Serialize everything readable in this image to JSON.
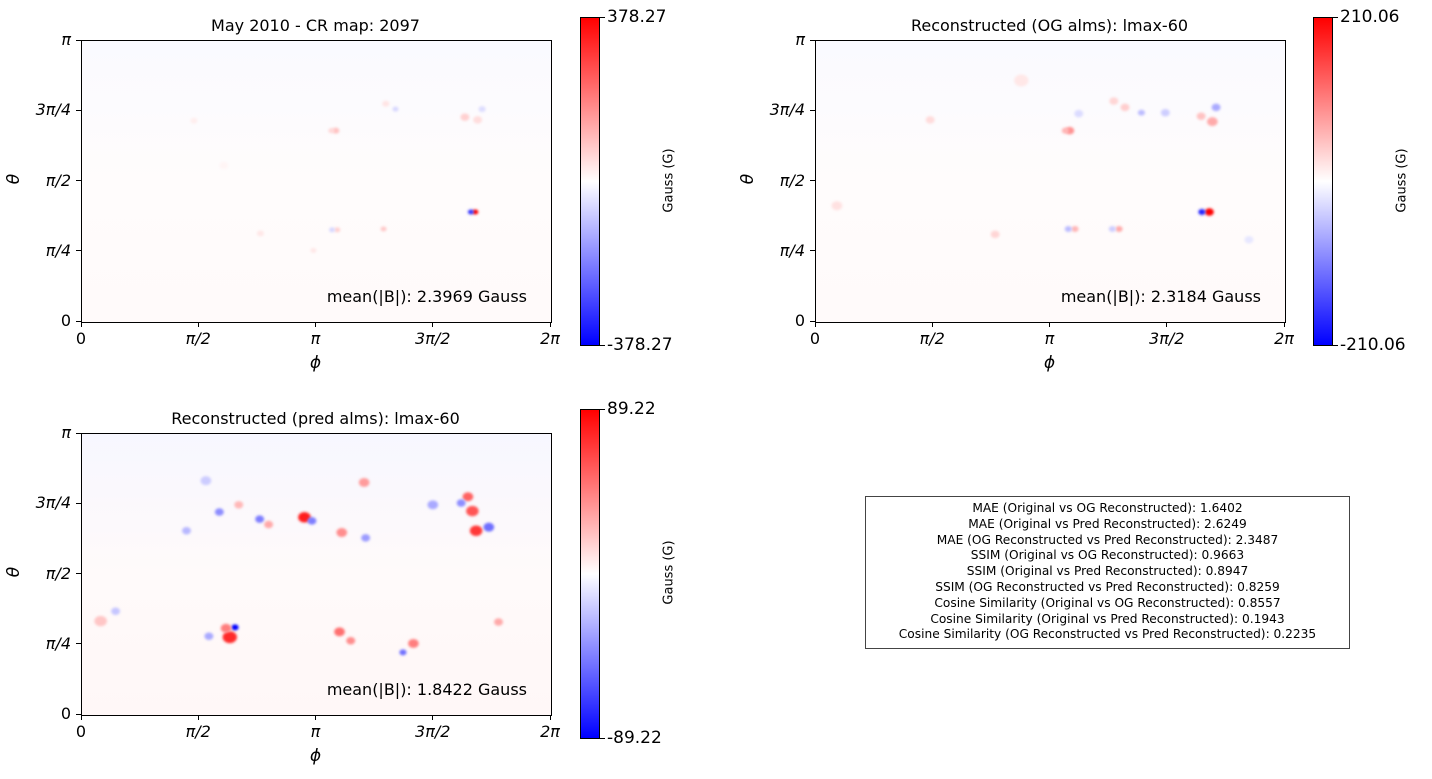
{
  "colors": {
    "positive": "#ff0000",
    "negative": "#0000ff",
    "neutral": "#ffffff",
    "frame": "#000000"
  },
  "x_ticks": [
    "0",
    "π/2",
    "π",
    "3π/2",
    "2π"
  ],
  "y_ticks": [
    "0",
    "π/4",
    "π/2",
    "3π/4",
    "π"
  ],
  "xlabel": "ϕ",
  "ylabel": "θ",
  "colorbar_label": "Gauss (G)",
  "chart_data": [
    {
      "type": "heatmap",
      "title": "May 2010 - CR map: 2097",
      "xlabel": "ϕ",
      "ylabel": "θ",
      "x_ticks": [
        "0",
        "π/2",
        "π",
        "3π/2",
        "2π"
      ],
      "y_ticks": [
        "0",
        "π/4",
        "π/2",
        "3π/4",
        "π"
      ],
      "xlim": [
        0,
        6.2832
      ],
      "ylim": [
        0,
        3.1416
      ],
      "vmin": -378.27,
      "vmax": 378.27,
      "colorbar_max_label": "378.27",
      "colorbar_min_label": "-378.27",
      "colorbar_label": "Gauss (G)",
      "annotation": "mean(|B|): 2.3969 Gauss",
      "colormap": "bwr",
      "background_tint": 0.02,
      "features": [
        {
          "phi": 5.27,
          "theta": 1.23,
          "value": 378.27,
          "spread": 0.03
        },
        {
          "phi": 5.21,
          "theta": 1.23,
          "value": -300,
          "spread": 0.03
        },
        {
          "phi": 3.4,
          "theta": 2.14,
          "value": 90,
          "spread": 0.04
        },
        {
          "phi": 3.34,
          "theta": 2.14,
          "value": 60,
          "spread": 0.03
        },
        {
          "phi": 3.42,
          "theta": 1.03,
          "value": 70,
          "spread": 0.03
        },
        {
          "phi": 3.35,
          "theta": 1.03,
          "value": -60,
          "spread": 0.03
        },
        {
          "phi": 4.04,
          "theta": 1.04,
          "value": 80,
          "spread": 0.03
        },
        {
          "phi": 5.13,
          "theta": 2.29,
          "value": 70,
          "spread": 0.05
        },
        {
          "phi": 5.3,
          "theta": 2.26,
          "value": 50,
          "spread": 0.05
        },
        {
          "phi": 5.36,
          "theta": 2.38,
          "value": -50,
          "spread": 0.04
        },
        {
          "phi": 4.07,
          "theta": 2.44,
          "value": 40,
          "spread": 0.04
        },
        {
          "phi": 4.2,
          "theta": 2.38,
          "value": -60,
          "spread": 0.03
        },
        {
          "phi": 3.1,
          "theta": 0.8,
          "value": 35,
          "spread": 0.03
        },
        {
          "phi": 2.39,
          "theta": 0.99,
          "value": 35,
          "spread": 0.04
        },
        {
          "phi": 1.5,
          "theta": 2.25,
          "value": 25,
          "spread": 0.04
        },
        {
          "phi": 1.9,
          "theta": 1.75,
          "value": 15,
          "spread": 0.05
        }
      ]
    },
    {
      "type": "heatmap",
      "title": "Reconstructed (OG alms): lmax-60",
      "xlabel": "ϕ",
      "ylabel": "θ",
      "x_ticks": [
        "0",
        "π/2",
        "π",
        "3π/2",
        "2π"
      ],
      "y_ticks": [
        "0",
        "π/4",
        "π/2",
        "3π/4",
        "π"
      ],
      "xlim": [
        0,
        6.2832
      ],
      "ylim": [
        0,
        3.1416
      ],
      "vmin": -210.06,
      "vmax": 210.06,
      "colorbar_max_label": "210.06",
      "colorbar_min_label": "-210.06",
      "colorbar_label": "Gauss (G)",
      "annotation": "mean(|B|): 2.3184 Gauss",
      "colormap": "bwr",
      "background_tint": 0.02,
      "features": [
        {
          "phi": 5.27,
          "theta": 1.23,
          "value": 210.06,
          "spread": 0.05
        },
        {
          "phi": 5.17,
          "theta": 1.23,
          "value": -180,
          "spread": 0.04
        },
        {
          "phi": 3.4,
          "theta": 2.14,
          "value": 90,
          "spread": 0.05
        },
        {
          "phi": 3.34,
          "theta": 2.14,
          "value": 60,
          "spread": 0.04
        },
        {
          "phi": 3.47,
          "theta": 1.04,
          "value": 60,
          "spread": 0.04
        },
        {
          "phi": 3.38,
          "theta": 1.04,
          "value": -55,
          "spread": 0.04
        },
        {
          "phi": 4.06,
          "theta": 1.04,
          "value": 70,
          "spread": 0.04
        },
        {
          "phi": 3.97,
          "theta": 1.04,
          "value": -40,
          "spread": 0.04
        },
        {
          "phi": 5.31,
          "theta": 2.24,
          "value": 70,
          "spread": 0.06
        },
        {
          "phi": 5.36,
          "theta": 2.4,
          "value": -70,
          "spread": 0.05
        },
        {
          "phi": 5.16,
          "theta": 2.3,
          "value": 50,
          "spread": 0.05
        },
        {
          "phi": 4.14,
          "theta": 2.4,
          "value": 40,
          "spread": 0.05
        },
        {
          "phi": 4.36,
          "theta": 2.34,
          "value": -55,
          "spread": 0.04
        },
        {
          "phi": 4.68,
          "theta": 2.34,
          "value": -40,
          "spread": 0.05
        },
        {
          "phi": 3.99,
          "theta": 2.47,
          "value": 35,
          "spread": 0.05
        },
        {
          "phi": 3.52,
          "theta": 2.33,
          "value": -30,
          "spread": 0.05
        },
        {
          "phi": 1.53,
          "theta": 2.26,
          "value": 30,
          "spread": 0.05
        },
        {
          "phi": 2.4,
          "theta": 0.98,
          "value": 35,
          "spread": 0.05
        },
        {
          "phi": 0.28,
          "theta": 1.3,
          "value": 25,
          "spread": 0.06
        },
        {
          "phi": 2.75,
          "theta": 2.7,
          "value": 20,
          "spread": 0.08
        },
        {
          "phi": 5.8,
          "theta": 0.92,
          "value": -20,
          "spread": 0.05
        }
      ]
    },
    {
      "type": "heatmap",
      "title": "Reconstructed (pred alms): lmax-60",
      "xlabel": "ϕ",
      "ylabel": "θ",
      "x_ticks": [
        "0",
        "π/2",
        "π",
        "3π/2",
        "2π"
      ],
      "y_ticks": [
        "0",
        "π/4",
        "π/2",
        "3π/4",
        "π"
      ],
      "xlim": [
        0,
        6.2832
      ],
      "ylim": [
        0,
        3.1416
      ],
      "vmin": -89.22,
      "vmax": 89.22,
      "colorbar_max_label": "89.22",
      "colorbar_min_label": "-89.22",
      "colorbar_label": "Gauss (G)",
      "annotation": "mean(|B|): 1.8422 Gauss",
      "colormap": "bwr",
      "background_tint": 0.03,
      "features": [
        {
          "phi": 2.98,
          "theta": 2.21,
          "value": 80,
          "spread": 0.07
        },
        {
          "phi": 3.08,
          "theta": 2.17,
          "value": -45,
          "spread": 0.05
        },
        {
          "phi": 2.38,
          "theta": 2.19,
          "value": -45,
          "spread": 0.05
        },
        {
          "phi": 2.5,
          "theta": 2.13,
          "value": 30,
          "spread": 0.05
        },
        {
          "phi": 3.48,
          "theta": 2.04,
          "value": 40,
          "spread": 0.06
        },
        {
          "phi": 3.8,
          "theta": 1.98,
          "value": -35,
          "spread": 0.05
        },
        {
          "phi": 5.17,
          "theta": 2.44,
          "value": 55,
          "spread": 0.06
        },
        {
          "phi": 5.23,
          "theta": 2.28,
          "value": 60,
          "spread": 0.07
        },
        {
          "phi": 5.28,
          "theta": 2.06,
          "value": 70,
          "spread": 0.07
        },
        {
          "phi": 5.45,
          "theta": 2.1,
          "value": -50,
          "spread": 0.06
        },
        {
          "phi": 5.08,
          "theta": 2.37,
          "value": -40,
          "spread": 0.05
        },
        {
          "phi": 3.78,
          "theta": 2.6,
          "value": 35,
          "spread": 0.06
        },
        {
          "phi": 4.7,
          "theta": 2.35,
          "value": -30,
          "spread": 0.06
        },
        {
          "phi": 1.84,
          "theta": 2.27,
          "value": -40,
          "spread": 0.05
        },
        {
          "phi": 1.4,
          "theta": 2.06,
          "value": -25,
          "spread": 0.05
        },
        {
          "phi": 2.05,
          "theta": 0.98,
          "value": -89.22,
          "spread": 0.04
        },
        {
          "phi": 1.98,
          "theta": 0.87,
          "value": 75,
          "spread": 0.08
        },
        {
          "phi": 1.93,
          "theta": 0.97,
          "value": 45,
          "spread": 0.06
        },
        {
          "phi": 1.7,
          "theta": 0.88,
          "value": -30,
          "spread": 0.05
        },
        {
          "phi": 3.45,
          "theta": 0.93,
          "value": 50,
          "spread": 0.06
        },
        {
          "phi": 3.6,
          "theta": 0.83,
          "value": 40,
          "spread": 0.05
        },
        {
          "phi": 4.44,
          "theta": 0.8,
          "value": 45,
          "spread": 0.06
        },
        {
          "phi": 4.3,
          "theta": 0.7,
          "value": -50,
          "spread": 0.04
        },
        {
          "phi": 5.58,
          "theta": 1.04,
          "value": 30,
          "spread": 0.05
        },
        {
          "phi": 0.25,
          "theta": 1.05,
          "value": 20,
          "spread": 0.07
        },
        {
          "phi": 0.45,
          "theta": 1.16,
          "value": -20,
          "spread": 0.05
        },
        {
          "phi": 1.66,
          "theta": 2.62,
          "value": -18,
          "spread": 0.06
        },
        {
          "phi": 2.1,
          "theta": 2.35,
          "value": 25,
          "spread": 0.05
        }
      ]
    }
  ],
  "metrics": [
    "MAE (Original vs OG Reconstructed): 1.6402",
    "MAE (Original vs Pred Reconstructed): 2.6249",
    "MAE (OG Reconstructed vs Pred Reconstructed): 2.3487",
    "SSIM (Original vs OG Reconstructed): 0.9663",
    "SSIM (Original vs Pred Reconstructed): 0.8947",
    "SSIM (OG Reconstructed vs Pred Reconstructed): 0.8259",
    "Cosine Similarity (Original vs OG Reconstructed): 0.8557",
    "Cosine Similarity (Original vs Pred Reconstructed): 0.1943",
    "Cosine Similarity (OG Reconstructed vs Pred Reconstructed): 0.2235"
  ]
}
